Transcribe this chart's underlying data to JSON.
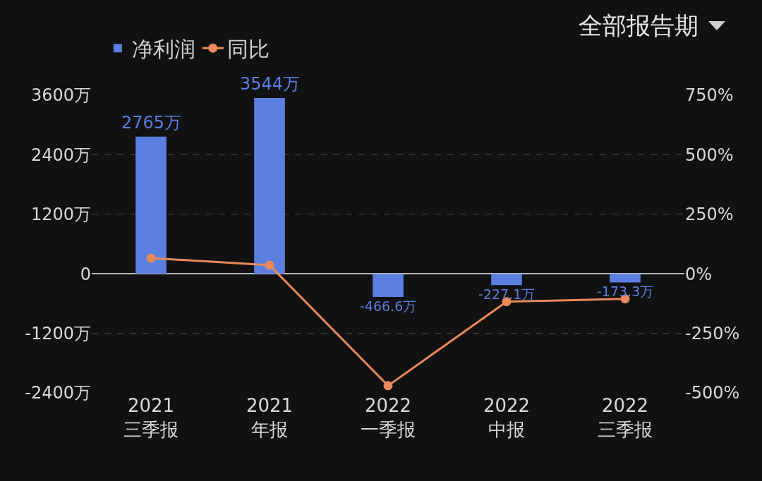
{
  "chart_data": {
    "type": "bar",
    "categories": [
      "2021\n三季报",
      "2021\n年报",
      "2022\n一季报",
      "2022\n中报",
      "2022\n三季报"
    ],
    "series": [
      {
        "name": "净利润",
        "color": "#5b7fe0",
        "values": [
          2765,
          3544,
          -466.6,
          -227.1,
          -173.3
        ],
        "value_labels": [
          "2765万",
          "3544万",
          "-466.6万",
          "-227.1万",
          "-173.3万"
        ]
      },
      {
        "name": "同比",
        "type": "line",
        "axis": "y2",
        "color": "#e8895a",
        "marker": "circle",
        "values": [
          66,
          36,
          -470,
          -117,
          -105
        ]
      }
    ],
    "ylim": [
      -2400,
      3600
    ],
    "yticks": [
      {
        "value": 3600,
        "label": "3600万"
      },
      {
        "value": 2400,
        "label": "2400万"
      },
      {
        "value": 1200,
        "label": "1200万"
      },
      0,
      {
        "value": -1200,
        "label": "-1200万"
      },
      {
        "value": -2400,
        "label": "-2400万"
      }
    ],
    "y2lim": [
      -500,
      750
    ],
    "y2ticks": [
      {
        "value": 750,
        "label": "750%"
      },
      {
        "value": 500,
        "label": "500%"
      },
      {
        "value": 250,
        "label": "250%"
      },
      {
        "value": 0,
        "label": "0%"
      },
      {
        "value": -250,
        "label": "-250%"
      },
      {
        "value": -500,
        "label": "-500%"
      }
    ],
    "grid": "y",
    "legend": "top left",
    "annotations": [
      "全部报告期"
    ]
  }
}
